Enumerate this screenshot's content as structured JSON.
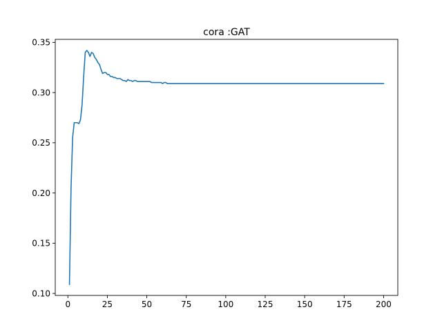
{
  "chart_data": {
    "type": "line",
    "title": "cora :GAT",
    "xlabel": "",
    "ylabel": "",
    "xlim": [
      -8,
      209
    ],
    "ylim": [
      0.098,
      0.353
    ],
    "xticks": [
      0,
      25,
      50,
      75,
      100,
      125,
      150,
      175,
      200
    ],
    "xtick_labels": [
      "0",
      "25",
      "50",
      "75",
      "100",
      "125",
      "150",
      "175",
      "200"
    ],
    "yticks": [
      0.1,
      0.15,
      0.2,
      0.25,
      0.3,
      0.35
    ],
    "ytick_labels": [
      "0.10",
      "0.15",
      "0.20",
      "0.25",
      "0.30",
      "0.35"
    ],
    "grid": false,
    "legend": "none",
    "series": [
      {
        "color": "#1f77b4",
        "x": [
          1,
          2,
          3,
          4,
          5,
          6,
          7,
          8,
          9,
          10,
          11,
          12,
          13,
          14,
          15,
          16,
          17,
          18,
          19,
          20,
          21,
          22,
          23,
          24,
          25,
          26,
          27,
          28,
          29,
          30,
          31,
          32,
          33,
          34,
          35,
          36,
          37,
          38,
          39,
          40,
          41,
          42,
          43,
          44,
          45,
          46,
          47,
          48,
          49,
          50,
          51,
          52,
          53,
          54,
          55,
          56,
          57,
          58,
          59,
          60,
          61,
          62,
          63,
          64,
          65,
          200
        ],
        "y": [
          0.109,
          0.205,
          0.255,
          0.27,
          0.27,
          0.27,
          0.269,
          0.273,
          0.288,
          0.316,
          0.34,
          0.342,
          0.34,
          0.336,
          0.34,
          0.339,
          0.335,
          0.333,
          0.33,
          0.328,
          0.323,
          0.319,
          0.32,
          0.32,
          0.318,
          0.318,
          0.316,
          0.316,
          0.315,
          0.315,
          0.314,
          0.314,
          0.314,
          0.313,
          0.312,
          0.312,
          0.311,
          0.313,
          0.312,
          0.312,
          0.311,
          0.312,
          0.312,
          0.311,
          0.311,
          0.311,
          0.311,
          0.311,
          0.311,
          0.311,
          0.311,
          0.311,
          0.31,
          0.31,
          0.31,
          0.31,
          0.31,
          0.31,
          0.31,
          0.309,
          0.31,
          0.31,
          0.309,
          0.309,
          0.309,
          0.309
        ]
      }
    ]
  }
}
